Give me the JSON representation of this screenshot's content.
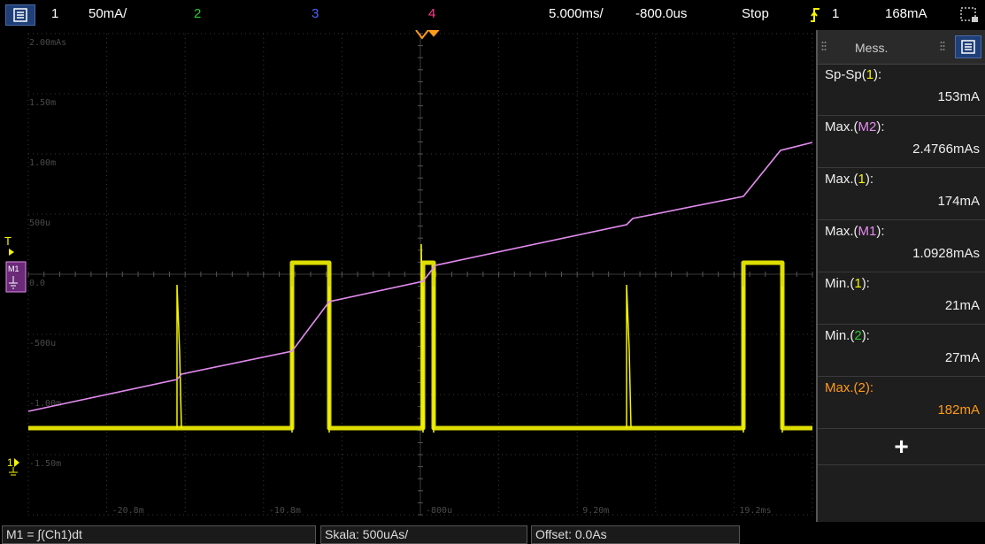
{
  "topbar": {
    "ch1_label": "1",
    "ch1_scale": "50mA/",
    "ch2_label": "2",
    "ch3_label": "3",
    "ch4_label": "4",
    "timebase": "5.000ms/",
    "delay": "-800.0us",
    "run_state": "Stop",
    "trigger_source": "1",
    "trigger_level": "168mA"
  },
  "colors": {
    "ch1": "#f5f500",
    "ch2": "#2ec82e",
    "ch3": "#4a64ff",
    "ch4": "#ff3c8c",
    "math": "#e48cf0",
    "highlight": "#ff9a1a"
  },
  "icons": [
    "menu-icon",
    "trigger-edge-icon",
    "zoom-icon",
    "drag-handle-icon",
    "add-icon",
    "trigger-position-icon",
    "ground-marker-icon"
  ],
  "grid": {
    "y_labels": [
      "2.00mAs",
      "1.50m",
      "1.00m",
      "500u",
      "0.0",
      "-500u",
      "-1.00m",
      "-1.50m"
    ],
    "x_labels": [
      "-20.8m",
      "-10.8m",
      "-800u",
      "9.20m",
      "19.2ms"
    ]
  },
  "markers": {
    "trigger_label": "T",
    "math_marker": "M1",
    "ch1_marker": "1"
  },
  "sidepanel": {
    "tab_label": "Mess.",
    "measurements": [
      {
        "label_prefix": "Sp-Sp(",
        "source": "1",
        "label_suffix": "):",
        "value": "153mA"
      },
      {
        "label_prefix": "Max.(",
        "source": "M2",
        "label_suffix": "):",
        "value": "2.4766mAs"
      },
      {
        "label_prefix": "Max.(",
        "source": "1",
        "label_suffix": "):",
        "value": "174mA"
      },
      {
        "label_prefix": "Max.(",
        "source": "M1",
        "label_suffix": "):",
        "value": "1.0928mAs"
      },
      {
        "label_prefix": "Min.(",
        "source": "1",
        "label_suffix": "):",
        "value": "21mA"
      },
      {
        "label_prefix": "Min.(",
        "source": "2",
        "label_suffix": "):",
        "value": "27mA"
      },
      {
        "label_prefix": "Max.(",
        "source": "2",
        "label_suffix": "):",
        "value": "182mA"
      }
    ],
    "add_label": "+"
  },
  "bottombar": {
    "math_def": "M1 = ∫(Ch1)dt",
    "scale": "Skala: 500uAs/",
    "offset": "Offset: 0.0As"
  }
}
